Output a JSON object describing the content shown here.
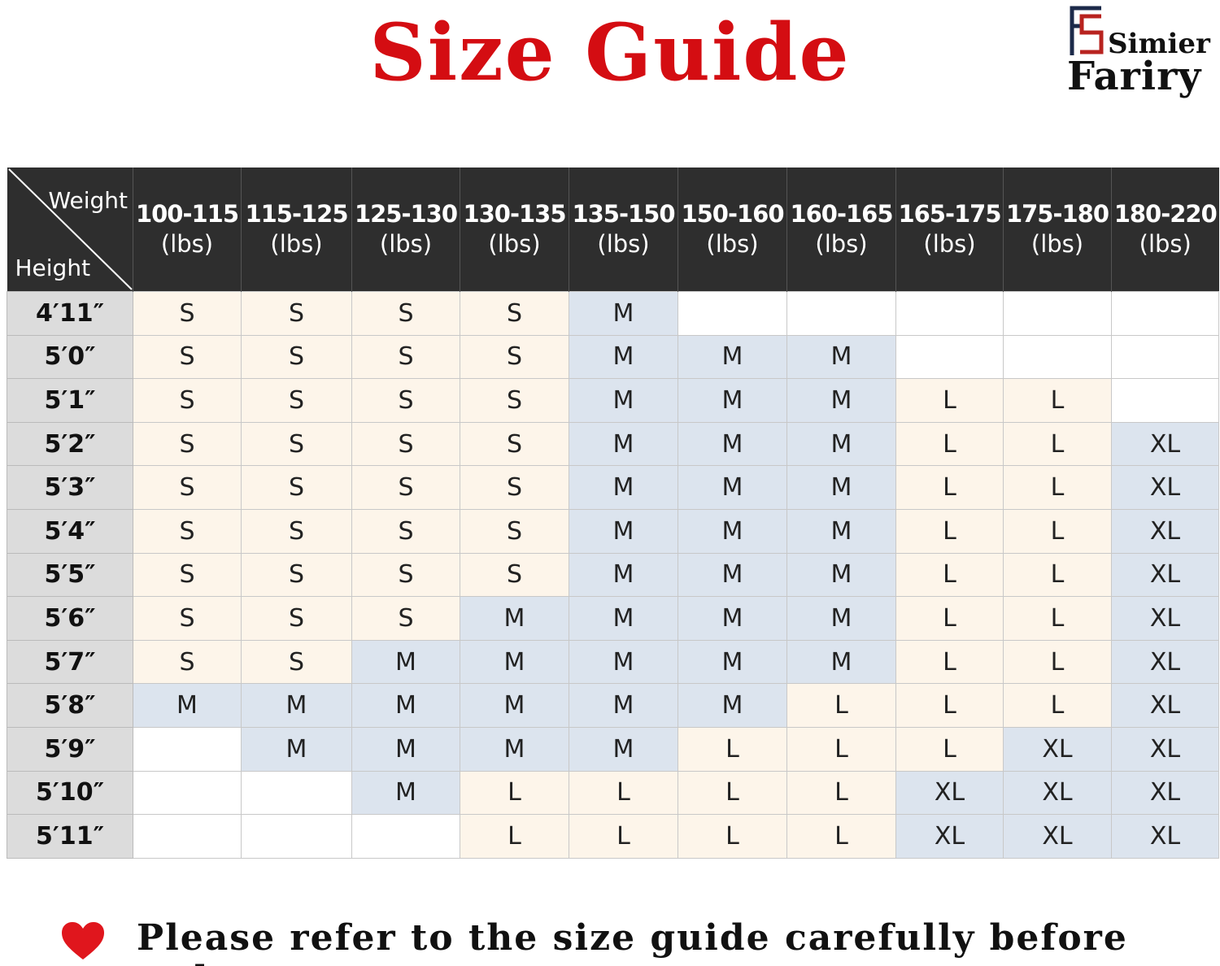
{
  "title": "Size Guide",
  "logo": {
    "line1": "Simier",
    "line2": "Fariry",
    "colors": {
      "navy": "#1c2a4a",
      "red": "#b8231f"
    }
  },
  "table": {
    "corner_top": "Weight",
    "corner_bottom": "Height",
    "columns": [
      {
        "range": "100-115",
        "unit": "(lbs)"
      },
      {
        "range": "115-125",
        "unit": "(lbs)"
      },
      {
        "range": "125-130",
        "unit": "(lbs)"
      },
      {
        "range": "130-135",
        "unit": "(lbs)"
      },
      {
        "range": "135-150",
        "unit": "(lbs)"
      },
      {
        "range": "150-160",
        "unit": "(lbs)"
      },
      {
        "range": "160-165",
        "unit": "(lbs)"
      },
      {
        "range": "165-175",
        "unit": "(lbs)"
      },
      {
        "range": "175-180",
        "unit": "(lbs)"
      },
      {
        "range": "180-220",
        "unit": "(lbs)"
      }
    ],
    "rows": [
      {
        "height": "4′11″",
        "sizes": [
          "S",
          "S",
          "S",
          "S",
          "M",
          "",
          "",
          "",
          "",
          ""
        ]
      },
      {
        "height": "5′0″",
        "sizes": [
          "S",
          "S",
          "S",
          "S",
          "M",
          "M",
          "M",
          "",
          "",
          ""
        ]
      },
      {
        "height": "5′1″",
        "sizes": [
          "S",
          "S",
          "S",
          "S",
          "M",
          "M",
          "M",
          "L",
          "L",
          ""
        ]
      },
      {
        "height": "5′2″",
        "sizes": [
          "S",
          "S",
          "S",
          "S",
          "M",
          "M",
          "M",
          "L",
          "L",
          "XL"
        ]
      },
      {
        "height": "5′3″",
        "sizes": [
          "S",
          "S",
          "S",
          "S",
          "M",
          "M",
          "M",
          "L",
          "L",
          "XL"
        ]
      },
      {
        "height": "5′4″",
        "sizes": [
          "S",
          "S",
          "S",
          "S",
          "M",
          "M",
          "M",
          "L",
          "L",
          "XL"
        ]
      },
      {
        "height": "5′5″",
        "sizes": [
          "S",
          "S",
          "S",
          "S",
          "M",
          "M",
          "M",
          "L",
          "L",
          "XL"
        ]
      },
      {
        "height": "5′6″",
        "sizes": [
          "S",
          "S",
          "S",
          "M",
          "M",
          "M",
          "M",
          "L",
          "L",
          "XL"
        ]
      },
      {
        "height": "5′7″",
        "sizes": [
          "S",
          "S",
          "M",
          "M",
          "M",
          "M",
          "M",
          "L",
          "L",
          "XL"
        ]
      },
      {
        "height": "5′8″",
        "sizes": [
          "M",
          "M",
          "M",
          "M",
          "M",
          "M",
          "L",
          "L",
          "L",
          "XL"
        ]
      },
      {
        "height": "5′9″",
        "sizes": [
          "",
          "M",
          "M",
          "M",
          "M",
          "L",
          "L",
          "L",
          "XL",
          "XL"
        ]
      },
      {
        "height": "5′10″",
        "sizes": [
          "",
          "",
          "M",
          "L",
          "L",
          "L",
          "L",
          "XL",
          "XL",
          "XL"
        ]
      },
      {
        "height": "5′11″",
        "sizes": [
          "",
          "",
          "",
          "L",
          "L",
          "L",
          "L",
          "XL",
          "XL",
          "XL"
        ]
      }
    ],
    "size_colors": {
      "S": "#fdf5ea",
      "L": "#fdf5ea",
      "M": "#dce4ee",
      "XL": "#dce4ee",
      "": "#ffffff"
    }
  },
  "footer": {
    "note": "Please refer to the size guide carefully before order.",
    "icon": "heart-icon",
    "icon_color": "#e0161d"
  }
}
